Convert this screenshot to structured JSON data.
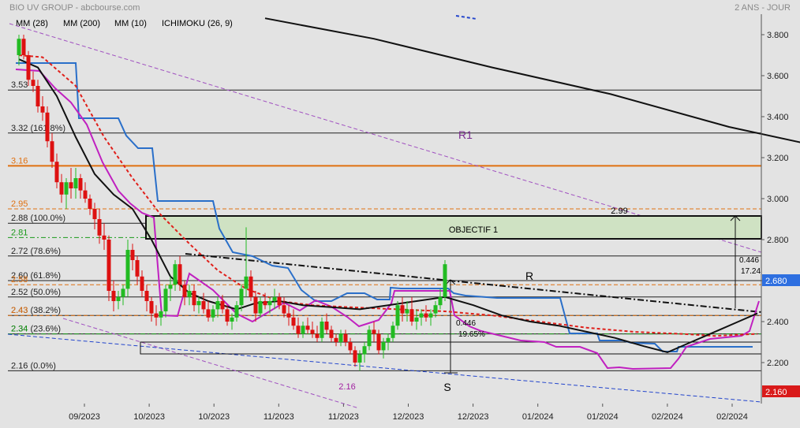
{
  "header": {
    "title": "BIO UV GROUP - abcbourse.com",
    "period": "2 ANS - JOUR",
    "indicators": [
      {
        "label": "MM (28)",
        "color": "#e0201b"
      },
      {
        "label": "MM (200)",
        "color": "#111111"
      },
      {
        "label": "MM (10)",
        "color": "#111111"
      },
      {
        "label": "ICHIMOKU (26, 9)",
        "color": "#2a6fc9"
      }
    ]
  },
  "chart_data": {
    "type": "line",
    "title": "BIO UV GROUP",
    "y_scale": "linear",
    "ylim": [
      2.0,
      3.9
    ],
    "y_ticks": [
      "2.200",
      "2.400",
      "2.600",
      "2.800",
      "3.000",
      "3.200",
      "3.400",
      "3.600",
      "3.800"
    ],
    "x_tick_labels": [
      "09/2023",
      "10/2023",
      "10/2023",
      "11/2023",
      "11/2023",
      "12/2023",
      "12/2023",
      "01/2024",
      "01/2024",
      "02/2024",
      "02/2024"
    ],
    "last_price": "2.680",
    "low_marker": "2.160",
    "candles": [
      [
        3.7,
        3.8,
        3.65,
        3.78
      ],
      [
        3.78,
        3.8,
        3.68,
        3.7
      ],
      [
        3.7,
        3.72,
        3.55,
        3.58
      ],
      [
        3.58,
        3.62,
        3.52,
        3.55
      ],
      [
        3.55,
        3.58,
        3.42,
        3.45
      ],
      [
        3.45,
        3.5,
        3.38,
        3.42
      ],
      [
        3.42,
        3.45,
        3.25,
        3.28
      ],
      [
        3.28,
        3.32,
        3.15,
        3.18
      ],
      [
        3.18,
        3.22,
        3.05,
        3.08
      ],
      [
        3.08,
        3.12,
        2.98,
        3.02
      ],
      [
        3.02,
        3.1,
        2.95,
        3.08
      ],
      [
        3.08,
        3.15,
        3.0,
        3.05
      ],
      [
        3.05,
        3.15,
        3.0,
        3.1
      ],
      [
        3.1,
        3.12,
        3.0,
        3.04
      ],
      [
        3.04,
        3.08,
        2.98,
        3.0
      ],
      [
        3.0,
        3.02,
        2.92,
        2.95
      ],
      [
        2.95,
        2.98,
        2.85,
        2.9
      ],
      [
        2.9,
        2.95,
        2.78,
        2.82
      ],
      [
        2.82,
        2.88,
        2.75,
        2.8
      ],
      [
        2.8,
        2.82,
        2.5,
        2.55
      ],
      [
        2.55,
        2.6,
        2.45,
        2.5
      ],
      [
        2.5,
        2.55,
        2.46,
        2.52
      ],
      [
        2.52,
        2.58,
        2.48,
        2.56
      ],
      [
        2.56,
        2.8,
        2.52,
        2.75
      ],
      [
        2.75,
        2.78,
        2.65,
        2.7
      ],
      [
        2.7,
        2.72,
        2.58,
        2.62
      ],
      [
        2.62,
        2.65,
        2.52,
        2.55
      ],
      [
        2.55,
        2.58,
        2.45,
        2.5
      ],
      [
        2.5,
        2.52,
        2.4,
        2.44
      ],
      [
        2.44,
        2.48,
        2.38,
        2.42
      ],
      [
        2.42,
        2.46,
        2.38,
        2.45
      ],
      [
        2.45,
        2.58,
        2.42,
        2.56
      ],
      [
        2.56,
        2.62,
        2.5,
        2.58
      ],
      [
        2.58,
        2.7,
        2.55,
        2.68
      ],
      [
        2.68,
        2.72,
        2.55,
        2.58
      ],
      [
        2.58,
        2.6,
        2.48,
        2.52
      ],
      [
        2.52,
        2.58,
        2.48,
        2.55
      ],
      [
        2.55,
        2.58,
        2.45,
        2.48
      ],
      [
        2.48,
        2.52,
        2.44,
        2.5
      ],
      [
        2.5,
        2.54,
        2.44,
        2.46
      ],
      [
        2.46,
        2.5,
        2.4,
        2.42
      ],
      [
        2.42,
        2.48,
        2.4,
        2.46
      ],
      [
        2.46,
        2.52,
        2.42,
        2.5
      ],
      [
        2.5,
        2.53,
        2.44,
        2.46
      ],
      [
        2.46,
        2.48,
        2.38,
        2.4
      ],
      [
        2.4,
        2.44,
        2.36,
        2.42
      ],
      [
        2.42,
        2.5,
        2.4,
        2.48
      ],
      [
        2.48,
        2.58,
        2.45,
        2.56
      ],
      [
        2.56,
        2.86,
        2.52,
        2.62
      ],
      [
        2.62,
        2.65,
        2.5,
        2.52
      ],
      [
        2.52,
        2.55,
        2.4,
        2.44
      ],
      [
        2.44,
        2.52,
        2.42,
        2.5
      ],
      [
        2.5,
        2.54,
        2.46,
        2.48
      ],
      [
        2.48,
        2.52,
        2.44,
        2.5
      ],
      [
        2.5,
        2.56,
        2.46,
        2.52
      ],
      [
        2.52,
        2.54,
        2.46,
        2.48
      ],
      [
        2.48,
        2.52,
        2.42,
        2.44
      ],
      [
        2.44,
        2.48,
        2.38,
        2.42
      ],
      [
        2.42,
        2.46,
        2.36,
        2.38
      ],
      [
        2.38,
        2.42,
        2.32,
        2.34
      ],
      [
        2.34,
        2.4,
        2.32,
        2.38
      ],
      [
        2.38,
        2.42,
        2.34,
        2.36
      ],
      [
        2.36,
        2.4,
        2.32,
        2.34
      ],
      [
        2.34,
        2.38,
        2.3,
        2.32
      ],
      [
        2.32,
        2.42,
        2.3,
        2.4
      ],
      [
        2.4,
        2.44,
        2.34,
        2.36
      ],
      [
        2.36,
        2.38,
        2.3,
        2.32
      ],
      [
        2.32,
        2.34,
        2.28,
        2.3
      ],
      [
        2.3,
        2.36,
        2.28,
        2.34
      ],
      [
        2.34,
        2.36,
        2.28,
        2.3
      ],
      [
        2.3,
        2.32,
        2.24,
        2.26
      ],
      [
        2.26,
        2.28,
        2.18,
        2.2
      ],
      [
        2.2,
        2.26,
        2.16,
        2.24
      ],
      [
        2.24,
        2.3,
        2.2,
        2.28
      ],
      [
        2.28,
        2.38,
        2.26,
        2.36
      ],
      [
        2.36,
        2.4,
        2.3,
        2.34
      ],
      [
        2.34,
        2.36,
        2.24,
        2.26
      ],
      [
        2.26,
        2.32,
        2.22,
        2.3
      ],
      [
        2.3,
        2.34,
        2.26,
        2.32
      ],
      [
        2.32,
        2.4,
        2.3,
        2.38
      ],
      [
        2.38,
        2.5,
        2.36,
        2.48
      ],
      [
        2.48,
        2.52,
        2.4,
        2.44
      ],
      [
        2.44,
        2.5,
        2.4,
        2.46
      ],
      [
        2.46,
        2.52,
        2.38,
        2.4
      ],
      [
        2.4,
        2.46,
        2.36,
        2.42
      ],
      [
        2.42,
        2.46,
        2.38,
        2.44
      ],
      [
        2.44,
        2.48,
        2.4,
        2.42
      ],
      [
        2.42,
        2.46,
        2.38,
        2.44
      ],
      [
        2.44,
        2.5,
        2.42,
        2.48
      ],
      [
        2.48,
        2.56,
        2.46,
        2.52
      ],
      [
        2.52,
        2.7,
        2.5,
        2.68
      ]
    ],
    "series": [
      {
        "name": "MM (28)",
        "color": "#e0201b",
        "dash": "4,3",
        "values": [
          [
            0,
            3.7
          ],
          [
            5,
            3.69
          ],
          [
            12,
            3.55
          ],
          [
            18,
            3.3
          ],
          [
            24,
            3.1
          ],
          [
            30,
            2.92
          ],
          [
            36,
            2.78
          ],
          [
            42,
            2.65
          ],
          [
            48,
            2.56
          ],
          [
            55,
            2.5
          ],
          [
            62,
            2.48
          ],
          [
            70,
            2.47
          ],
          [
            80,
            2.46
          ],
          [
            90,
            2.45
          ],
          [
            100,
            2.43
          ],
          [
            110,
            2.4
          ],
          [
            120,
            2.37
          ],
          [
            130,
            2.35
          ],
          [
            140,
            2.34
          ],
          [
            147,
            2.33
          ],
          [
            156,
            2.34
          ]
        ]
      },
      {
        "name": "MM (200)",
        "color": "#111111",
        "dash": "",
        "values": [
          [
            52,
            3.88
          ],
          [
            75,
            3.78
          ],
          [
            100,
            3.64
          ],
          [
            125,
            3.51
          ],
          [
            150,
            3.35
          ],
          [
            170,
            3.25
          ],
          [
            188,
            3.19
          ],
          [
            200,
            3.16
          ]
        ]
      },
      {
        "name": "MM (10)",
        "color": "#111111",
        "dash": "",
        "values": [
          [
            0,
            3.68
          ],
          [
            4,
            3.64
          ],
          [
            8,
            3.5
          ],
          [
            12,
            3.3
          ],
          [
            16,
            3.12
          ],
          [
            20,
            3.02
          ],
          [
            24,
            2.95
          ],
          [
            28,
            2.8
          ],
          [
            32,
            2.62
          ],
          [
            36,
            2.54
          ],
          [
            40,
            2.5
          ],
          [
            46,
            2.46
          ],
          [
            50,
            2.49
          ],
          [
            55,
            2.5
          ],
          [
            60,
            2.48
          ],
          [
            66,
            2.47
          ],
          [
            72,
            2.46
          ],
          [
            78,
            2.48
          ],
          [
            84,
            2.5
          ],
          [
            90,
            2.52
          ],
          [
            96,
            2.48
          ],
          [
            102,
            2.43
          ],
          [
            108,
            2.4
          ],
          [
            114,
            2.38
          ],
          [
            120,
            2.35
          ],
          [
            126,
            2.32
          ],
          [
            132,
            2.28
          ],
          [
            137,
            2.25
          ],
          [
            142,
            2.3
          ],
          [
            148,
            2.36
          ],
          [
            152,
            2.4
          ],
          [
            156,
            2.44
          ]
        ]
      }
    ],
    "horizontal_levels": [
      {
        "label": "3.53",
        "value": 3.53,
        "color": "#222222",
        "style": "solid"
      },
      {
        "label": "3.32  (161.8%)",
        "value": 3.32,
        "color": "#222222",
        "style": "solid"
      },
      {
        "label": "3.16",
        "value": 3.16,
        "color": "#e07010",
        "style": "solid"
      },
      {
        "label": "2.95",
        "value": 2.95,
        "color": "#e07010",
        "style": "dash"
      },
      {
        "label": "2.88  (100.0%)",
        "value": 2.88,
        "color": "#222222",
        "style": "solid"
      },
      {
        "label": "2.81",
        "value": 2.81,
        "color": "#1a9a1a",
        "style": "dashdot"
      },
      {
        "label": "2.72  (78.6%)",
        "value": 2.72,
        "color": "#222222",
        "style": "solid"
      },
      {
        "label": "2.60  (61.8%)",
        "value": 2.6,
        "color": "#222222",
        "style": "solid"
      },
      {
        "label": "2.58",
        "value": 2.58,
        "color": "#e07010",
        "style": "dash"
      },
      {
        "label": "2.52  (50.0%)",
        "value": 2.52,
        "color": "#222222",
        "style": "solid"
      },
      {
        "label": "2.43  (38.2%)",
        "value": 2.43,
        "color": "#222222",
        "style": "solid"
      },
      {
        "label": "2.43",
        "value": 2.43,
        "color": "#e07010",
        "style": "dash"
      },
      {
        "label": "2.34  (23.6%)",
        "value": 2.34,
        "color": "#222222",
        "style": "solid"
      },
      {
        "label": "2.34",
        "value": 2.34,
        "color": "#1a9a1a",
        "style": "dashdot"
      },
      {
        "label": "2.16  (0.0%)",
        "value": 2.16,
        "color": "#222222",
        "style": "solid"
      }
    ],
    "annotations": {
      "objectif": "OBJECTIF 1",
      "target_price": "2.99",
      "r1": "R1",
      "r": "R",
      "s": "S",
      "low_label": "2.16",
      "tri_height_left": "0.446",
      "tri_pct_left": "19.65%",
      "tri_height_right": "0.446",
      "tri_pct_right": "17.24"
    }
  }
}
